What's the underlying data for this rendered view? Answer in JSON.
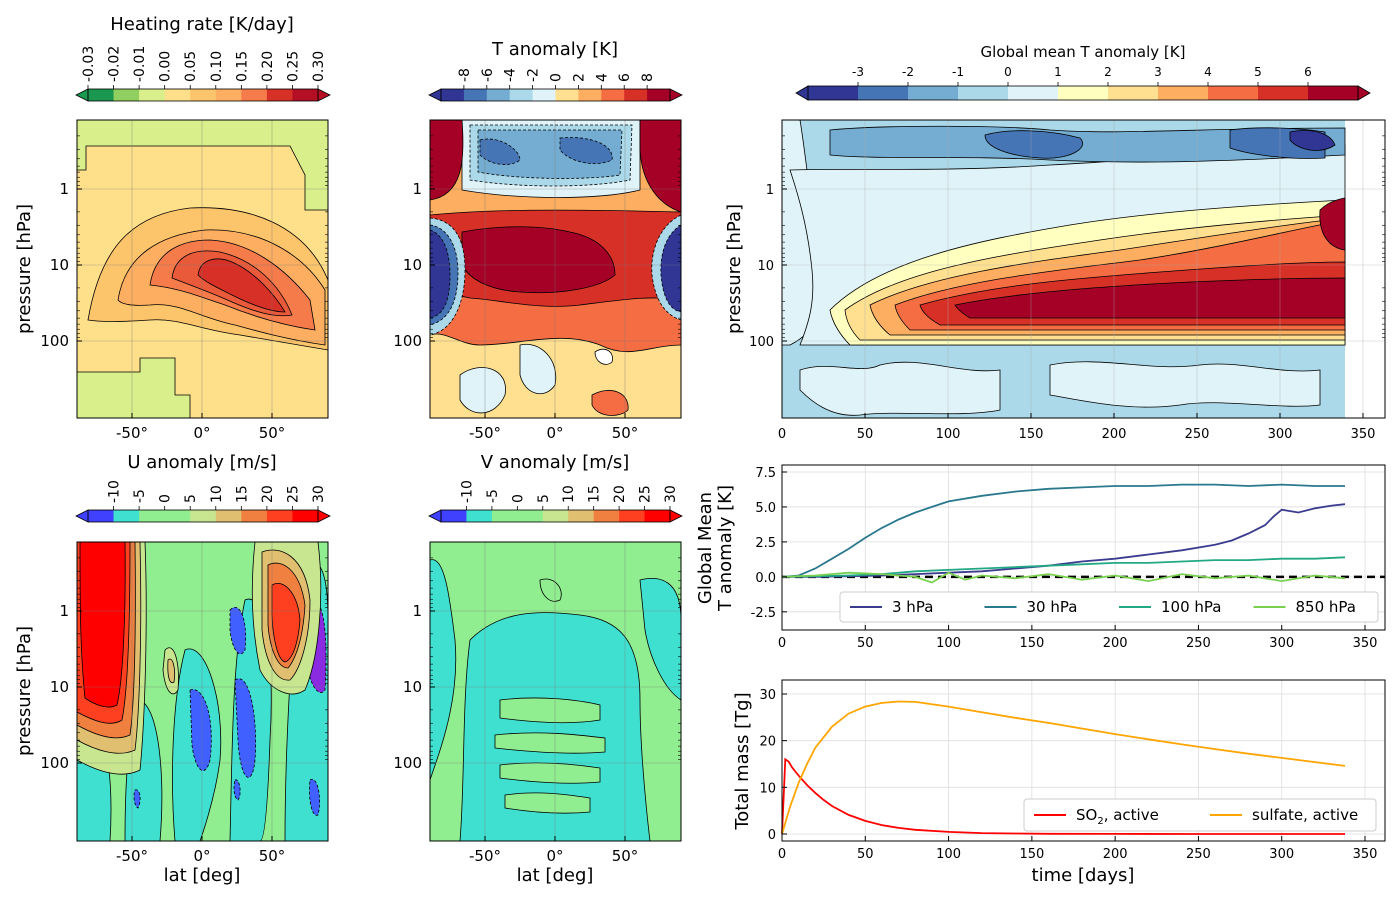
{
  "panels": {
    "heating": {
      "title": "Heating  rate [K/day]",
      "cbar_ticks": [
        "-0.03",
        "-0.02",
        "-0.01",
        "0.00",
        "0.05",
        "0.10",
        "0.15",
        "0.20",
        "0.25",
        "0.30"
      ],
      "cbar_colors": [
        "#1a9850",
        "#91cf60",
        "#d9ef8b",
        "#fee08b",
        "#fdc56b",
        "#fdae61",
        "#f67b4b",
        "#d73027",
        "#b50f26"
      ],
      "ylabel": "pressure  [hPa]",
      "xticks": [
        "-50°",
        "0°",
        "50°"
      ],
      "yticks": [
        "1",
        "10",
        "100"
      ]
    },
    "t_anom": {
      "title": "T anomaly [K]",
      "cbar_ticks": [
        "-8",
        "-6",
        "-4",
        "-2",
        "0",
        "2",
        "4",
        "6",
        "8"
      ],
      "cbar_colors": [
        "#313695",
        "#4575b4",
        "#74add1",
        "#abd9e9",
        "#e0f3f8",
        "#fee090",
        "#fdae61",
        "#f46d43",
        "#d73027",
        "#a50026"
      ],
      "xticks": [
        "-50°",
        "0°",
        "50°"
      ],
      "yticks": [
        "1",
        "10",
        "100"
      ]
    },
    "global_t": {
      "title": "Global mean T anomaly [K]",
      "cbar_ticks": [
        "-3",
        "-2",
        "-1",
        "0",
        "1",
        "2",
        "3",
        "4",
        "5",
        "6"
      ],
      "cbar_colors": [
        "#313695",
        "#4575b4",
        "#74add1",
        "#abd9e9",
        "#e0f3f8",
        "#ffffbf",
        "#fee090",
        "#fdae61",
        "#f46d43",
        "#d73027",
        "#a50026"
      ],
      "ylabel": "pressure [hPa]",
      "xticks": [
        "0",
        "50",
        "100",
        "150",
        "200",
        "250",
        "300",
        "350"
      ],
      "yticks": [
        "1",
        "10",
        "100"
      ]
    },
    "u_anom": {
      "title": "U anomaly [m/s]",
      "cbar_ticks": [
        "-10",
        "-5",
        "0",
        "5",
        "10",
        "15",
        "20",
        "25",
        "30"
      ],
      "cbar_colors": [
        "#4040ff",
        "#40e0d0",
        "#90ee90",
        "#90ee90",
        "#c8e690",
        "#e0c070",
        "#f08040",
        "#ff4020",
        "#ff0000"
      ],
      "ylabel": "pressure  [hPa]",
      "xlabel": "lat [deg]",
      "xticks": [
        "-50°",
        "0°",
        "50°"
      ],
      "yticks": [
        "1",
        "10",
        "100"
      ]
    },
    "v_anom": {
      "title": "V anomaly [m/s]",
      "cbar_ticks": [
        "-10",
        "-5",
        "0",
        "5",
        "10",
        "15",
        "20",
        "25",
        "30"
      ],
      "cbar_colors": [
        "#4040ff",
        "#40e0d0",
        "#90ee90",
        "#90ee90",
        "#c8e690",
        "#e0c070",
        "#f08040",
        "#ff4020",
        "#ff0000"
      ],
      "xlabel": "lat [deg]",
      "xticks": [
        "-50°",
        "0°",
        "50°"
      ],
      "yticks": [
        "1",
        "10",
        "100"
      ]
    }
  },
  "chart_data": [
    {
      "type": "line",
      "ylabel": "Global Mean\nT anomaly [K]",
      "xlim": [
        0,
        362
      ],
      "ylim": [
        -3.8,
        8
      ],
      "xticks": [
        "0",
        "50",
        "100",
        "150",
        "200",
        "250",
        "300",
        "350"
      ],
      "yticks": [
        "7.5",
        "5.0",
        "2.5",
        "0.0",
        "-2.5"
      ],
      "ytick_values": [
        7.5,
        5.0,
        2.5,
        0.0,
        -2.5
      ],
      "legend": "lower right",
      "series": [
        {
          "name": "3 hPa",
          "color": "#3b3b8f",
          "x": [
            0,
            20,
            40,
            60,
            80,
            100,
            120,
            140,
            160,
            180,
            200,
            220,
            240,
            260,
            270,
            280,
            290,
            295,
            300,
            310,
            320,
            330,
            338
          ],
          "values": [
            0,
            0,
            0.05,
            0.1,
            0.2,
            0.3,
            0.4,
            0.6,
            0.8,
            1.1,
            1.3,
            1.6,
            1.9,
            2.3,
            2.6,
            3.1,
            3.7,
            4.3,
            4.8,
            4.6,
            4.9,
            5.1,
            5.2
          ]
        },
        {
          "name": "30 hPa",
          "color": "#2a788e",
          "x": [
            0,
            10,
            20,
            30,
            40,
            50,
            60,
            70,
            80,
            90,
            100,
            120,
            140,
            160,
            180,
            200,
            220,
            240,
            260,
            280,
            300,
            320,
            338
          ],
          "values": [
            0,
            0.1,
            0.6,
            1.3,
            2.0,
            2.8,
            3.5,
            4.1,
            4.6,
            5.0,
            5.4,
            5.8,
            6.1,
            6.3,
            6.4,
            6.5,
            6.5,
            6.6,
            6.6,
            6.5,
            6.6,
            6.5,
            6.5
          ]
        },
        {
          "name": "100 hPa",
          "color": "#22a884",
          "x": [
            0,
            20,
            40,
            60,
            80,
            100,
            120,
            140,
            160,
            180,
            200,
            220,
            240,
            260,
            280,
            300,
            320,
            338
          ],
          "values": [
            0,
            0.05,
            0.1,
            0.2,
            0.4,
            0.5,
            0.6,
            0.7,
            0.8,
            0.9,
            1.0,
            1.0,
            1.1,
            1.2,
            1.2,
            1.3,
            1.3,
            1.4
          ]
        },
        {
          "name": "850 hPa",
          "color": "#7ad151",
          "x": [
            0,
            20,
            40,
            60,
            80,
            90,
            100,
            110,
            120,
            140,
            160,
            180,
            200,
            220,
            240,
            260,
            280,
            300,
            320,
            338
          ],
          "values": [
            0,
            0.1,
            0.3,
            0.2,
            0,
            -0.4,
            0.3,
            -0.2,
            0.1,
            -0.1,
            0.2,
            -0.2,
            0.1,
            -0.3,
            0.2,
            -0.1,
            0.1,
            -0.3,
            0.1,
            -0.1
          ]
        }
      ],
      "reference": {
        "y": 0
      }
    },
    {
      "type": "line",
      "xlabel": "time [days]",
      "ylabel": "Total mass [Tg]",
      "xlim": [
        0,
        362
      ],
      "ylim": [
        -1.5,
        33
      ],
      "xticks": [
        "0",
        "50",
        "100",
        "150",
        "200",
        "250",
        "300",
        "350"
      ],
      "yticks": [
        "30",
        "20",
        "10",
        "0"
      ],
      "ytick_values": [
        30,
        20,
        10,
        0
      ],
      "legend": "lower right",
      "series": [
        {
          "name": "SO₂, active",
          "label_main": "SO",
          "label_sub": "2",
          "label_rest": ", active",
          "color": "#ff0000",
          "x": [
            0,
            2,
            4,
            6,
            8,
            10,
            15,
            20,
            25,
            30,
            40,
            50,
            60,
            70,
            80,
            100,
            120,
            140,
            160,
            200,
            250,
            300,
            338
          ],
          "values": [
            0,
            16,
            15.5,
            14.3,
            13.4,
            12.5,
            10.5,
            8.8,
            7.3,
            6.0,
            4.1,
            2.8,
            1.9,
            1.3,
            0.9,
            0.45,
            0.2,
            0.1,
            0.05,
            0.02,
            0.01,
            0,
            0
          ]
        },
        {
          "name": "sulfate, active",
          "color": "#ffa500",
          "x": [
            0,
            5,
            10,
            15,
            20,
            30,
            40,
            50,
            60,
            70,
            80,
            100,
            120,
            140,
            160,
            180,
            200,
            220,
            240,
            260,
            280,
            300,
            320,
            338
          ],
          "values": [
            0,
            6,
            11,
            15,
            18.5,
            23,
            25.8,
            27.3,
            28.1,
            28.4,
            28.3,
            27.3,
            26.1,
            24.9,
            23.8,
            22.6,
            21.4,
            20.3,
            19.2,
            18.2,
            17.2,
            16.3,
            15.4,
            14.6
          ]
        }
      ]
    }
  ]
}
